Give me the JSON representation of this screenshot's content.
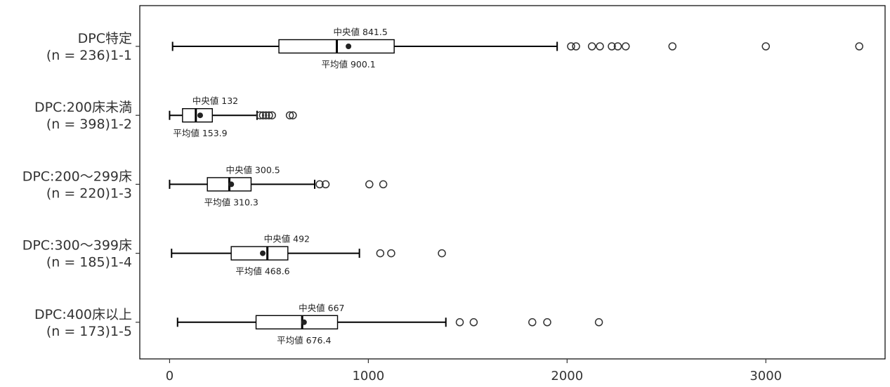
{
  "chart_data": {
    "type": "boxplot",
    "orientation": "horizontal",
    "grid": false,
    "xlim": [
      -150,
      3600
    ],
    "xticks": [
      0,
      1000,
      2000,
      3000
    ],
    "median_label": "中央値",
    "mean_label": "平均値",
    "categories": [
      {
        "label_line1": "DPC特定",
        "label_line2": "(n = 236)1-1",
        "whisker_low": 15,
        "q1": 550,
        "median": 841.5,
        "q3": 1130,
        "whisker_high": 1950,
        "mean": 900.1,
        "median_text": "841.5",
        "mean_text": "900.1",
        "outliers": [
          2020,
          2045,
          2125,
          2165,
          2225,
          2255,
          2295,
          2530,
          3000,
          3470
        ]
      },
      {
        "label_line1": "DPC:200床未満",
        "label_line2": "(n = 398)1-2",
        "whisker_low": 0,
        "q1": 65,
        "median": 132,
        "q3": 215,
        "whisker_high": 440,
        "mean": 153.9,
        "median_text": "132",
        "mean_text": "153.9",
        "outliers": [
          455,
          470,
          485,
          500,
          515,
          605,
          620
        ]
      },
      {
        "label_line1": "DPC:200～299床",
        "label_line2": "(n = 220)1-3",
        "whisker_low": 0,
        "q1": 190,
        "median": 300.5,
        "q3": 410,
        "whisker_high": 730,
        "mean": 310.3,
        "median_text": "300.5",
        "mean_text": "310.3",
        "outliers": [
          755,
          785,
          1005,
          1075
        ]
      },
      {
        "label_line1": "DPC:300～399床",
        "label_line2": "(n = 185)1-4",
        "whisker_low": 10,
        "q1": 310,
        "median": 492,
        "q3": 595,
        "whisker_high": 955,
        "mean": 468.6,
        "median_text": "492",
        "mean_text": "468.6",
        "outliers": [
          1060,
          1115,
          1370
        ]
      },
      {
        "label_line1": "DPC:400床以上",
        "label_line2": "(n = 173)1-5",
        "whisker_low": 40,
        "q1": 435,
        "median": 667,
        "q3": 845,
        "whisker_high": 1390,
        "mean": 676.4,
        "median_text": "667",
        "mean_text": "676.4",
        "outliers": [
          1460,
          1530,
          1825,
          1900,
          2160
        ]
      }
    ]
  }
}
